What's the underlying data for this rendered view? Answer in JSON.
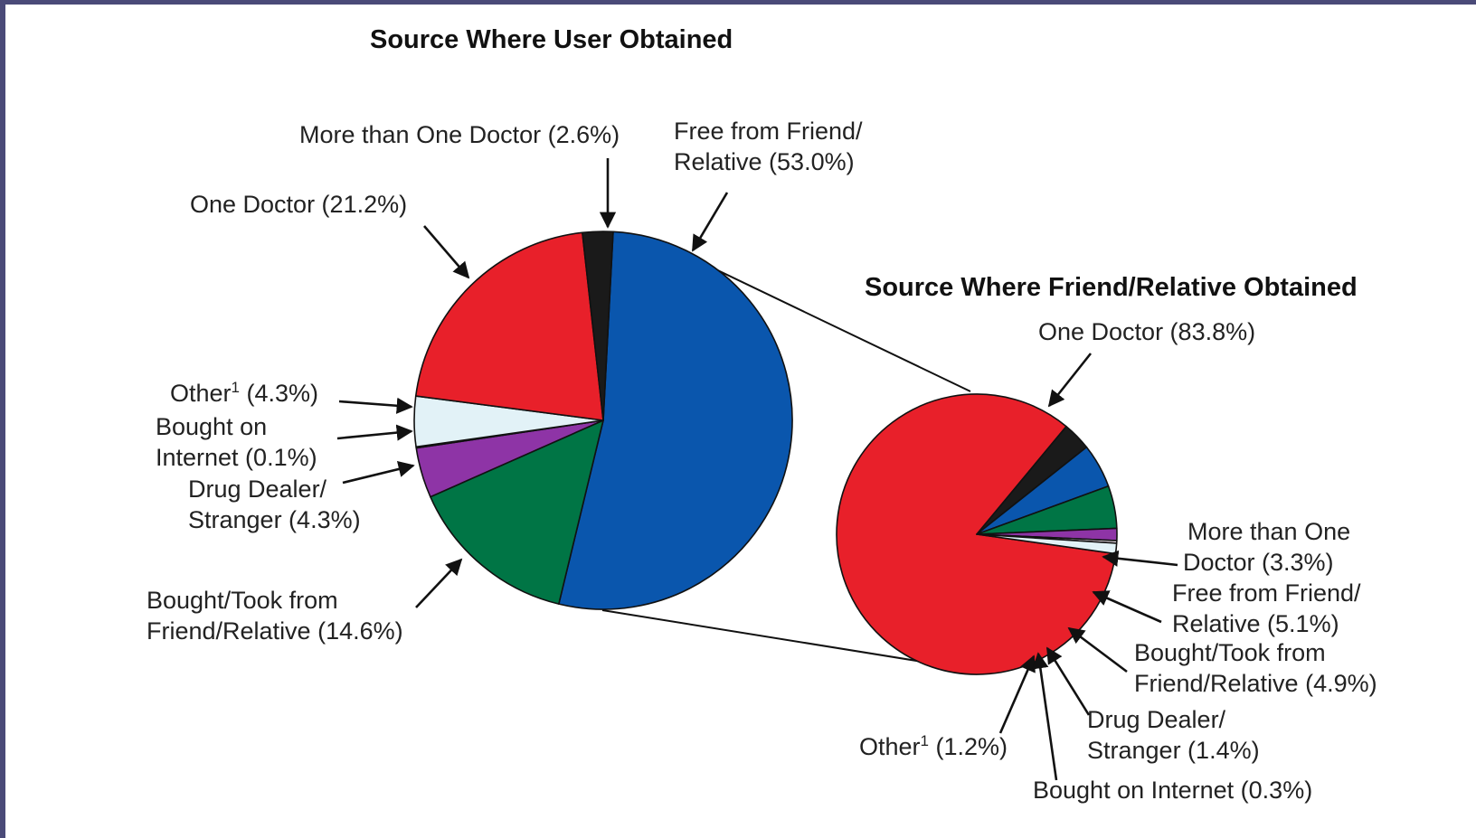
{
  "chart_data": [
    {
      "type": "pie",
      "title": "Source Where User Obtained",
      "slices": [
        {
          "label_lines": [
            "Free from Friend/",
            "Relative (53.0%)"
          ],
          "value": 53.0,
          "color": "#0a56ad"
        },
        {
          "label_lines": [
            "Bought/Took from",
            "Friend/Relative (14.6%)"
          ],
          "value": 14.6,
          "color": "#007545"
        },
        {
          "label_lines": [
            "Drug Dealer/",
            "Stranger (4.3%)"
          ],
          "value": 4.3,
          "color": "#8e34a6"
        },
        {
          "label_lines": [
            "Bought on",
            "Internet (0.1%)"
          ],
          "value": 0.1,
          "color": "#f2e9f2"
        },
        {
          "label_lines": [
            "Other",
            "(4.3%)"
          ],
          "superscript": "1",
          "value": 4.3,
          "color": "#e2f2f7"
        },
        {
          "label_lines": [
            "One Doctor (21.2%)"
          ],
          "value": 21.2,
          "color": "#e8202a"
        },
        {
          "label_lines": [
            "More than One Doctor (2.6%)"
          ],
          "value": 2.6,
          "color": "#1a1a1a"
        }
      ]
    },
    {
      "type": "pie",
      "title": "Source Where Friend/Relative Obtained",
      "slices": [
        {
          "label_lines": [
            "One Doctor (83.8%)"
          ],
          "value": 83.8,
          "color": "#e8202a"
        },
        {
          "label_lines": [
            "More than One",
            "Doctor (3.3%)"
          ],
          "value": 3.3,
          "color": "#1a1a1a"
        },
        {
          "label_lines": [
            "Free from Friend/",
            "Relative (5.1%)"
          ],
          "value": 5.1,
          "color": "#0a56ad"
        },
        {
          "label_lines": [
            "Bought/Took from",
            "Friend/Relative (4.9%)"
          ],
          "value": 4.9,
          "color": "#007545"
        },
        {
          "label_lines": [
            "Drug Dealer/",
            "Stranger (1.4%)"
          ],
          "value": 1.4,
          "color": "#8e34a6"
        },
        {
          "label_lines": [
            "Bought on Internet (0.3%)"
          ],
          "value": 0.3,
          "color": "#f2e9f2"
        },
        {
          "label_lines": [
            "Other",
            "(1.2%)"
          ],
          "superscript": "1",
          "value": 1.2,
          "color": "#e2f2f7"
        }
      ]
    }
  ]
}
